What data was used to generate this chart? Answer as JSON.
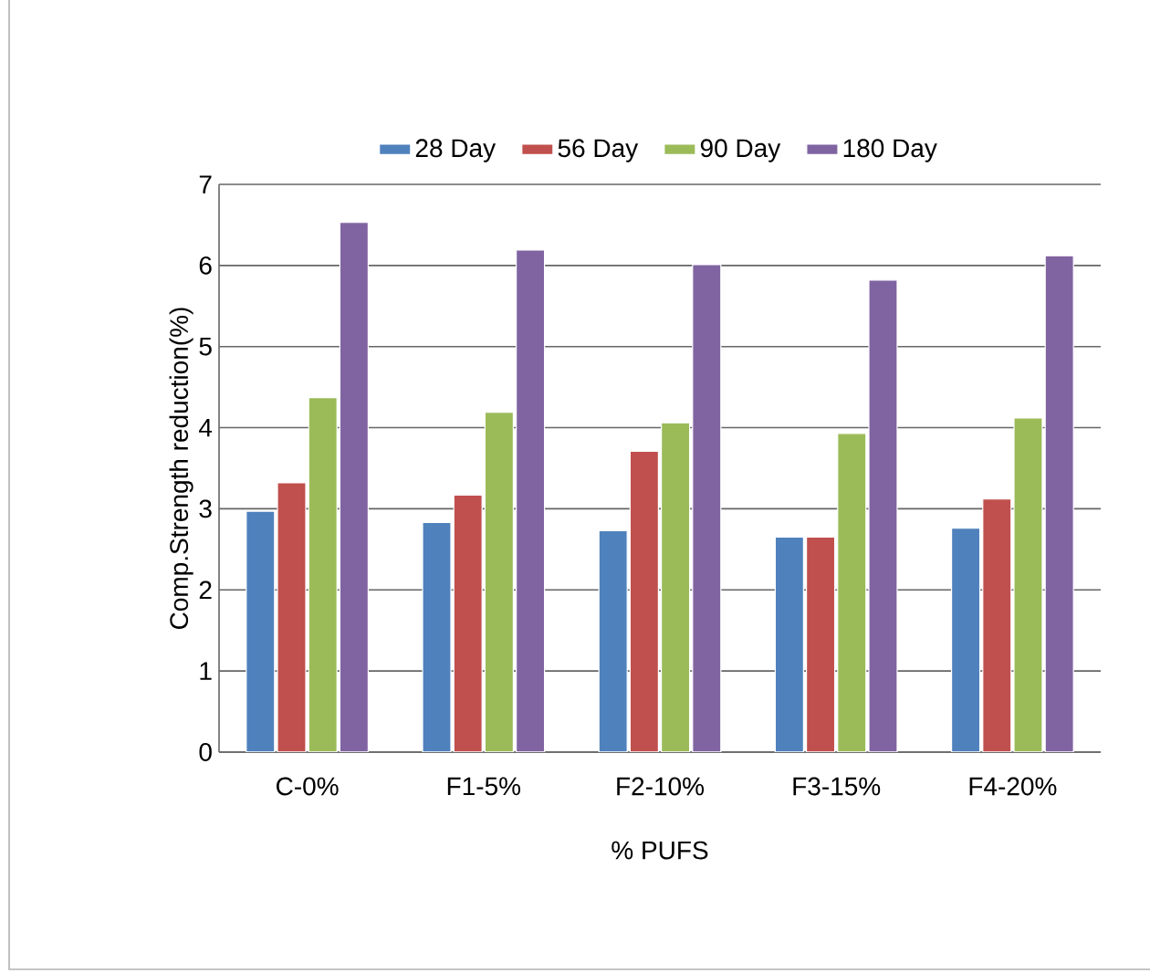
{
  "chart_data": {
    "type": "bar",
    "xlabel": "% PUFS",
    "ylabel": "Comp.Strength reduction(%)",
    "categories": [
      "C-0%",
      "F1-5%",
      "F2-10%",
      "F3-15%",
      "F4-20%"
    ],
    "series": [
      {
        "name": "28 Day",
        "color": "#4f81bd",
        "values": [
          2.97,
          2.83,
          2.73,
          2.65,
          2.76
        ]
      },
      {
        "name": "56 Day",
        "color": "#c0504d",
        "values": [
          3.32,
          3.17,
          3.71,
          2.65,
          3.12
        ]
      },
      {
        "name": "90 Day",
        "color": "#9bbb59",
        "values": [
          4.37,
          4.19,
          4.06,
          3.93,
          4.12
        ]
      },
      {
        "name": "180 Day",
        "color": "#8064a2",
        "values": [
          6.53,
          6.19,
          6.01,
          5.82,
          6.12
        ]
      }
    ],
    "ylim": [
      0,
      7
    ],
    "yticks": [
      0,
      1,
      2,
      3,
      4,
      5,
      6,
      7
    ],
    "grid": "y",
    "legend": "top"
  }
}
